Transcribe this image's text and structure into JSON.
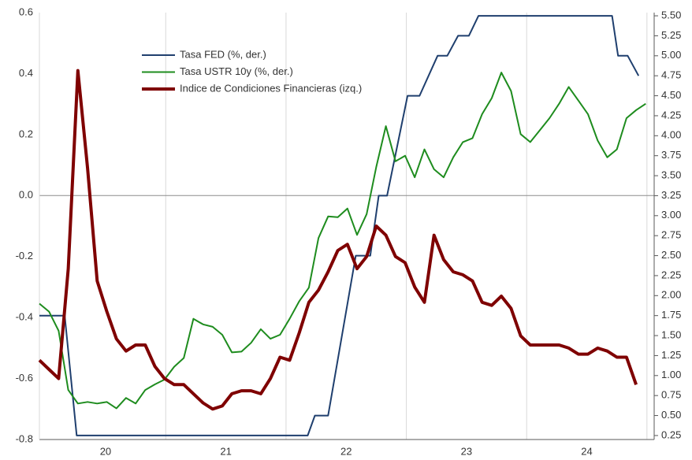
{
  "chart_data": {
    "type": "line",
    "xlim": [
      2019.95,
      2025.06
    ],
    "xticks": [
      {
        "value": 2020.5,
        "label": "20"
      },
      {
        "value": 2021.5,
        "label": "21"
      },
      {
        "value": 2022.5,
        "label": "22"
      },
      {
        "value": 2023.5,
        "label": "23"
      },
      {
        "value": 2024.5,
        "label": "24"
      }
    ],
    "xgrid": [
      2021,
      2022,
      2023,
      2024,
      2025
    ],
    "ylim": [
      -0.8,
      0.6
    ],
    "yticks": [
      0.6,
      0.4,
      0.2,
      {
        "value": 0,
        "label": "0.0"
      },
      -0.2,
      -0.4,
      -0.6,
      -0.8
    ],
    "zero_line": true,
    "y2lim": [
      0.2,
      5.54
    ],
    "y2ticks": [
      {
        "value": 5.5,
        "label": "5.50"
      },
      5.25,
      {
        "value": 5.0,
        "label": "5.00"
      },
      4.75,
      {
        "value": 4.5,
        "label": "4.50"
      },
      4.25,
      {
        "value": 4.0,
        "label": "4.00"
      },
      3.75,
      {
        "value": 3.5,
        "label": "3.50"
      },
      3.25,
      {
        "value": 3.0,
        "label": "3.00"
      },
      2.75,
      {
        "value": 2.5,
        "label": "2.50"
      },
      2.25,
      {
        "value": 2.0,
        "label": "2.00"
      },
      1.75,
      {
        "value": 1.5,
        "label": "1.50"
      },
      1.25,
      {
        "value": 1.0,
        "label": "1.00"
      },
      0.75,
      {
        "value": 0.5,
        "label": "0.50"
      },
      0.25
    ],
    "series": [
      {
        "name": "Tasa FED (%, der.)",
        "color": "#1f3f6e",
        "width": 2,
        "axis": "y2",
        "x": [
          2019.95,
          2020.16,
          2020.26,
          2022.18,
          2022.24,
          2022.35,
          2022.58,
          2022.7,
          2022.77,
          2022.84,
          2023.01,
          2023.11,
          2023.26,
          2023.34,
          2023.43,
          2023.52,
          2023.6,
          2024.71,
          2024.76,
          2024.84,
          2024.93
        ],
        "values": [
          1.75,
          1.75,
          0.25,
          0.25,
          0.5,
          0.5,
          2.5,
          2.5,
          3.25,
          3.25,
          4.5,
          4.5,
          5.0,
          5.0,
          5.25,
          5.25,
          5.5,
          5.5,
          5.0,
          5.0,
          4.75
        ]
      },
      {
        "name": "Tasa USTR 10y  (%, der.)",
        "color": "#1e8c1e",
        "width": 2,
        "axis": "y2",
        "x": [
          2019.95,
          2020.03,
          2020.11,
          2020.19,
          2020.27,
          2020.35,
          2020.43,
          2020.51,
          2020.59,
          2020.67,
          2020.75,
          2020.83,
          2020.91,
          2020.99,
          2021.07,
          2021.15,
          2021.23,
          2021.31,
          2021.39,
          2021.47,
          2021.55,
          2021.63,
          2021.71,
          2021.79,
          2021.87,
          2021.95,
          2022.03,
          2022.11,
          2022.19,
          2022.27,
          2022.35,
          2022.43,
          2022.51,
          2022.59,
          2022.67,
          2022.75,
          2022.83,
          2022.91,
          2022.99,
          2023.07,
          2023.15,
          2023.23,
          2023.31,
          2023.39,
          2023.47,
          2023.55,
          2023.63,
          2023.71,
          2023.79,
          2023.87,
          2023.95,
          2024.03,
          2024.11,
          2024.19,
          2024.27,
          2024.35,
          2024.43,
          2024.51,
          2024.59,
          2024.67,
          2024.75,
          2024.83,
          2024.91,
          2024.99
        ],
        "values": [
          1.9,
          1.8,
          1.56,
          0.82,
          0.65,
          0.67,
          0.65,
          0.67,
          0.59,
          0.72,
          0.65,
          0.82,
          0.89,
          0.95,
          1.11,
          1.22,
          1.71,
          1.64,
          1.61,
          1.51,
          1.29,
          1.3,
          1.41,
          1.58,
          1.46,
          1.51,
          1.71,
          1.93,
          2.1,
          2.72,
          2.99,
          2.98,
          3.09,
          2.76,
          3.02,
          3.61,
          4.12,
          3.68,
          3.75,
          3.48,
          3.83,
          3.58,
          3.48,
          3.73,
          3.92,
          3.97,
          4.27,
          4.47,
          4.79,
          4.56,
          4.02,
          3.92,
          4.07,
          4.22,
          4.4,
          4.61,
          4.44,
          4.27,
          3.94,
          3.73,
          3.83,
          4.22,
          4.32,
          4.4
        ]
      },
      {
        "name": "Indice de Condiciones Financieras (izq.)",
        "color": "#7f0000",
        "width": 4,
        "x": [
          2019.95,
          2020.03,
          2020.11,
          2020.19,
          2020.27,
          2020.35,
          2020.43,
          2020.51,
          2020.59,
          2020.67,
          2020.75,
          2020.83,
          2020.91,
          2020.99,
          2021.07,
          2021.15,
          2021.23,
          2021.31,
          2021.39,
          2021.47,
          2021.55,
          2021.63,
          2021.71,
          2021.79,
          2021.87,
          2021.95,
          2022.03,
          2022.11,
          2022.19,
          2022.27,
          2022.35,
          2022.43,
          2022.51,
          2022.59,
          2022.67,
          2022.75,
          2022.83,
          2022.91,
          2022.99,
          2023.07,
          2023.15,
          2023.23,
          2023.31,
          2023.39,
          2023.47,
          2023.55,
          2023.63,
          2023.71,
          2023.79,
          2023.87,
          2023.95,
          2024.03,
          2024.11,
          2024.19,
          2024.27,
          2024.35,
          2024.43,
          2024.51,
          2024.59,
          2024.67,
          2024.75,
          2024.83,
          2024.91,
          2024.99
        ],
        "values": [
          -0.54,
          -0.57,
          -0.6,
          -0.24,
          0.41,
          0.09,
          -0.28,
          -0.38,
          -0.47,
          -0.51,
          -0.49,
          -0.49,
          -0.56,
          -0.6,
          -0.62,
          -0.62,
          -0.65,
          -0.68,
          -0.7,
          -0.69,
          -0.65,
          -0.64,
          -0.64,
          -0.65,
          -0.6,
          -0.53,
          -0.54,
          -0.45,
          -0.35,
          -0.31,
          -0.25,
          -0.18,
          -0.16,
          -0.24,
          -0.2,
          -0.1,
          -0.13,
          -0.2,
          -0.22,
          -0.3,
          -0.35,
          -0.13,
          -0.21,
          -0.25,
          -0.26,
          -0.28,
          -0.35,
          -0.36,
          -0.33,
          -0.37,
          -0.46,
          -0.49,
          -0.49,
          -0.49,
          -0.49,
          -0.5,
          -0.52,
          -0.52,
          -0.5,
          -0.51,
          -0.53,
          -0.53,
          -0.62,
          null
        ]
      }
    ]
  }
}
